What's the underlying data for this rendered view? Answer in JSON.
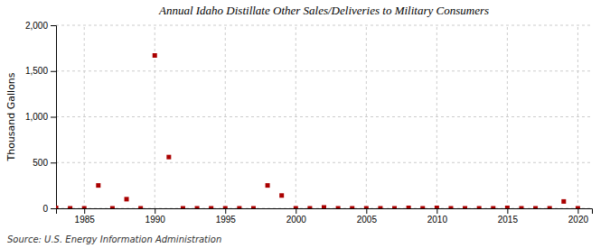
{
  "chart_data": {
    "type": "scatter",
    "title": "Annual Idaho Distillate Other Sales/Deliveries to Military Consumers",
    "ylabel": "Thousand Gallons",
    "source": "Source: U.S. Energy Information Administration",
    "x": [
      1983,
      1984,
      1985,
      1986,
      1987,
      1988,
      1989,
      1990,
      1991,
      1992,
      1993,
      1994,
      1995,
      1996,
      1997,
      1998,
      1999,
      2000,
      2001,
      2002,
      2003,
      2004,
      2005,
      2006,
      2007,
      2008,
      2009,
      2010,
      2011,
      2012,
      2013,
      2014,
      2015,
      2016,
      2017,
      2018,
      2019,
      2020
    ],
    "values": [
      5,
      0,
      0,
      250,
      0,
      100,
      0,
      1670,
      560,
      0,
      0,
      0,
      0,
      0,
      0,
      250,
      140,
      0,
      0,
      10,
      0,
      0,
      0,
      0,
      0,
      5,
      0,
      5,
      0,
      0,
      0,
      0,
      5,
      0,
      0,
      0,
      75,
      0
    ],
    "color": "#aa0000",
    "marker": "square",
    "xlim": [
      1983,
      2021
    ],
    "ylim": [
      0,
      2000
    ],
    "xticks": [
      1985,
      1990,
      1995,
      2000,
      2005,
      2010,
      2015,
      2020
    ],
    "yticks": [
      0,
      500,
      {
        "value": 1000,
        "label": "1,000"
      },
      {
        "value": 1500,
        "label": "1,500"
      },
      {
        "value": 2000,
        "label": "2,000"
      }
    ],
    "grid": true
  }
}
